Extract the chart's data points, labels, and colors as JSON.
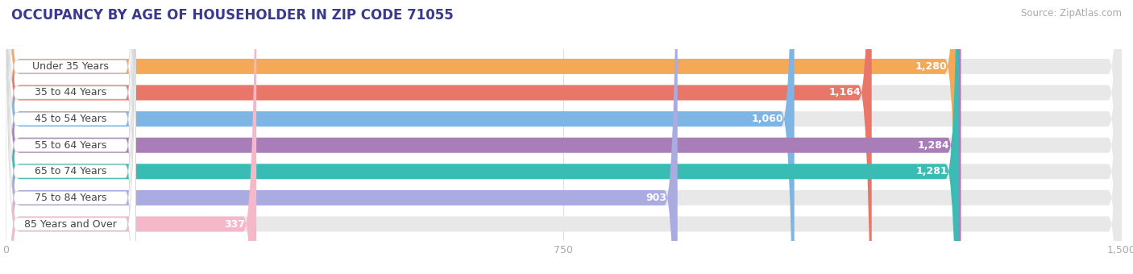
{
  "title": "OCCUPANCY BY AGE OF HOUSEHOLDER IN ZIP CODE 71055",
  "source": "Source: ZipAtlas.com",
  "categories": [
    "Under 35 Years",
    "35 to 44 Years",
    "45 to 54 Years",
    "55 to 64 Years",
    "65 to 74 Years",
    "75 to 84 Years",
    "85 Years and Over"
  ],
  "values": [
    1280,
    1164,
    1060,
    1284,
    1281,
    903,
    337
  ],
  "bar_colors": [
    "#F5A855",
    "#E8776A",
    "#7EB5E3",
    "#A87DB8",
    "#3ABCB5",
    "#AAABE0",
    "#F5B8C8"
  ],
  "xlim_max": 1500,
  "xticks": [
    0,
    750,
    1500
  ],
  "bg_color": "#ffffff",
  "bar_track_color": "#e8e8e8",
  "title_fontsize": 12,
  "source_fontsize": 8.5,
  "label_fontsize": 9,
  "value_fontsize": 9
}
